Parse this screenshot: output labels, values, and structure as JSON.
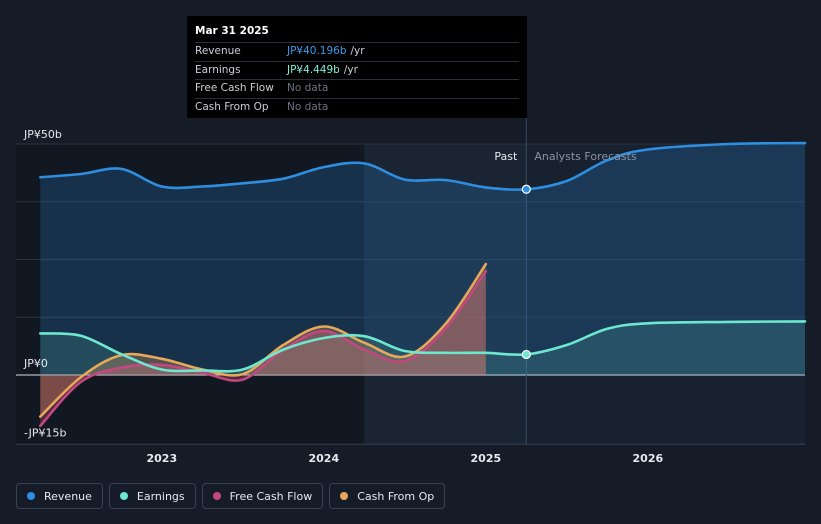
{
  "tooltip": {
    "date": "Mar 31 2025",
    "rows": [
      {
        "label": "Revenue",
        "value": "JP¥40.196b",
        "unit": "/yr",
        "color": "#3b9bea"
      },
      {
        "label": "Earnings",
        "value": "JP¥4.449b",
        "unit": "/yr",
        "color": "#7ef0d6"
      },
      {
        "label": "Free Cash Flow",
        "value": "No data",
        "unit": "",
        "color": "#6b7280"
      },
      {
        "label": "Cash From Op",
        "value": "No data",
        "unit": "",
        "color": "#6b7280"
      }
    ]
  },
  "legend": [
    {
      "label": "Revenue",
      "color": "#2e8ee0"
    },
    {
      "label": "Earnings",
      "color": "#6ee7cf"
    },
    {
      "label": "Free Cash Flow",
      "color": "#c2487f"
    },
    {
      "label": "Cash From Op",
      "color": "#e8a85a"
    }
  ],
  "chart_data": {
    "type": "line",
    "title": "",
    "y_tick_labels": [
      "JP¥50b",
      "JP¥0",
      "-JP¥15b"
    ],
    "ylim": [
      -15,
      50
    ],
    "xlim": [
      2022.1,
      2026.97
    ],
    "x_ticks": [
      2023,
      2024,
      2025,
      2026
    ],
    "x_tick_labels": [
      "2023",
      "2024",
      "2025",
      "2026"
    ],
    "past_label": "Past",
    "forecast_label": "Analysts Forecasts",
    "forecast_start": 2025.25,
    "highlight_start": 2024.25,
    "colors": {
      "revenue": "#2e8ee0",
      "earnings": "#6ee7cf",
      "fcf": "#c2487f",
      "cfo": "#e8a85a"
    },
    "series": [
      {
        "name": "Revenue",
        "key": "revenue",
        "x": [
          2022.25,
          2022.5,
          2022.75,
          2023.0,
          2023.25,
          2023.5,
          2023.75,
          2024.0,
          2024.25,
          2024.5,
          2024.75,
          2025.0,
          2025.25,
          2025.5,
          2025.75,
          2026.0,
          2026.5,
          2026.97
        ],
        "values": [
          42.8,
          43.5,
          44.6,
          40.8,
          40.8,
          41.5,
          42.5,
          45.0,
          45.8,
          42.3,
          42.2,
          40.6,
          40.2,
          42.0,
          46.5,
          48.8,
          50.0,
          50.2
        ]
      },
      {
        "name": "Earnings",
        "key": "earnings",
        "x": [
          2022.25,
          2022.5,
          2022.75,
          2023.0,
          2023.25,
          2023.5,
          2023.75,
          2024.0,
          2024.25,
          2024.5,
          2024.75,
          2025.0,
          2025.25,
          2025.5,
          2025.75,
          2026.0,
          2026.5,
          2026.97
        ],
        "values": [
          9.0,
          8.5,
          4.5,
          1.2,
          1.0,
          1.2,
          5.5,
          8.0,
          8.4,
          5.2,
          4.8,
          4.8,
          4.45,
          6.5,
          10.0,
          11.2,
          11.5,
          11.6
        ]
      },
      {
        "name": "Free Cash Flow",
        "key": "fcf",
        "x": [
          2022.25,
          2022.5,
          2022.75,
          2023.0,
          2023.25,
          2023.5,
          2023.75,
          2024.0,
          2024.25,
          2024.5,
          2024.75,
          2025.0
        ],
        "values": [
          -11.0,
          -1.5,
          1.6,
          2.2,
          0.5,
          -1.0,
          5.5,
          9.5,
          5.5,
          3.0,
          10.0,
          22.5
        ]
      },
      {
        "name": "Cash From Op",
        "key": "cfo",
        "x": [
          2022.25,
          2022.5,
          2022.75,
          2023.0,
          2023.25,
          2023.5,
          2023.75,
          2024.0,
          2024.25,
          2024.5,
          2024.75,
          2025.0
        ],
        "values": [
          -9.0,
          -0.5,
          4.3,
          3.5,
          1.2,
          0.2,
          6.5,
          10.5,
          7.0,
          4.0,
          11.0,
          24.0
        ]
      }
    ]
  }
}
